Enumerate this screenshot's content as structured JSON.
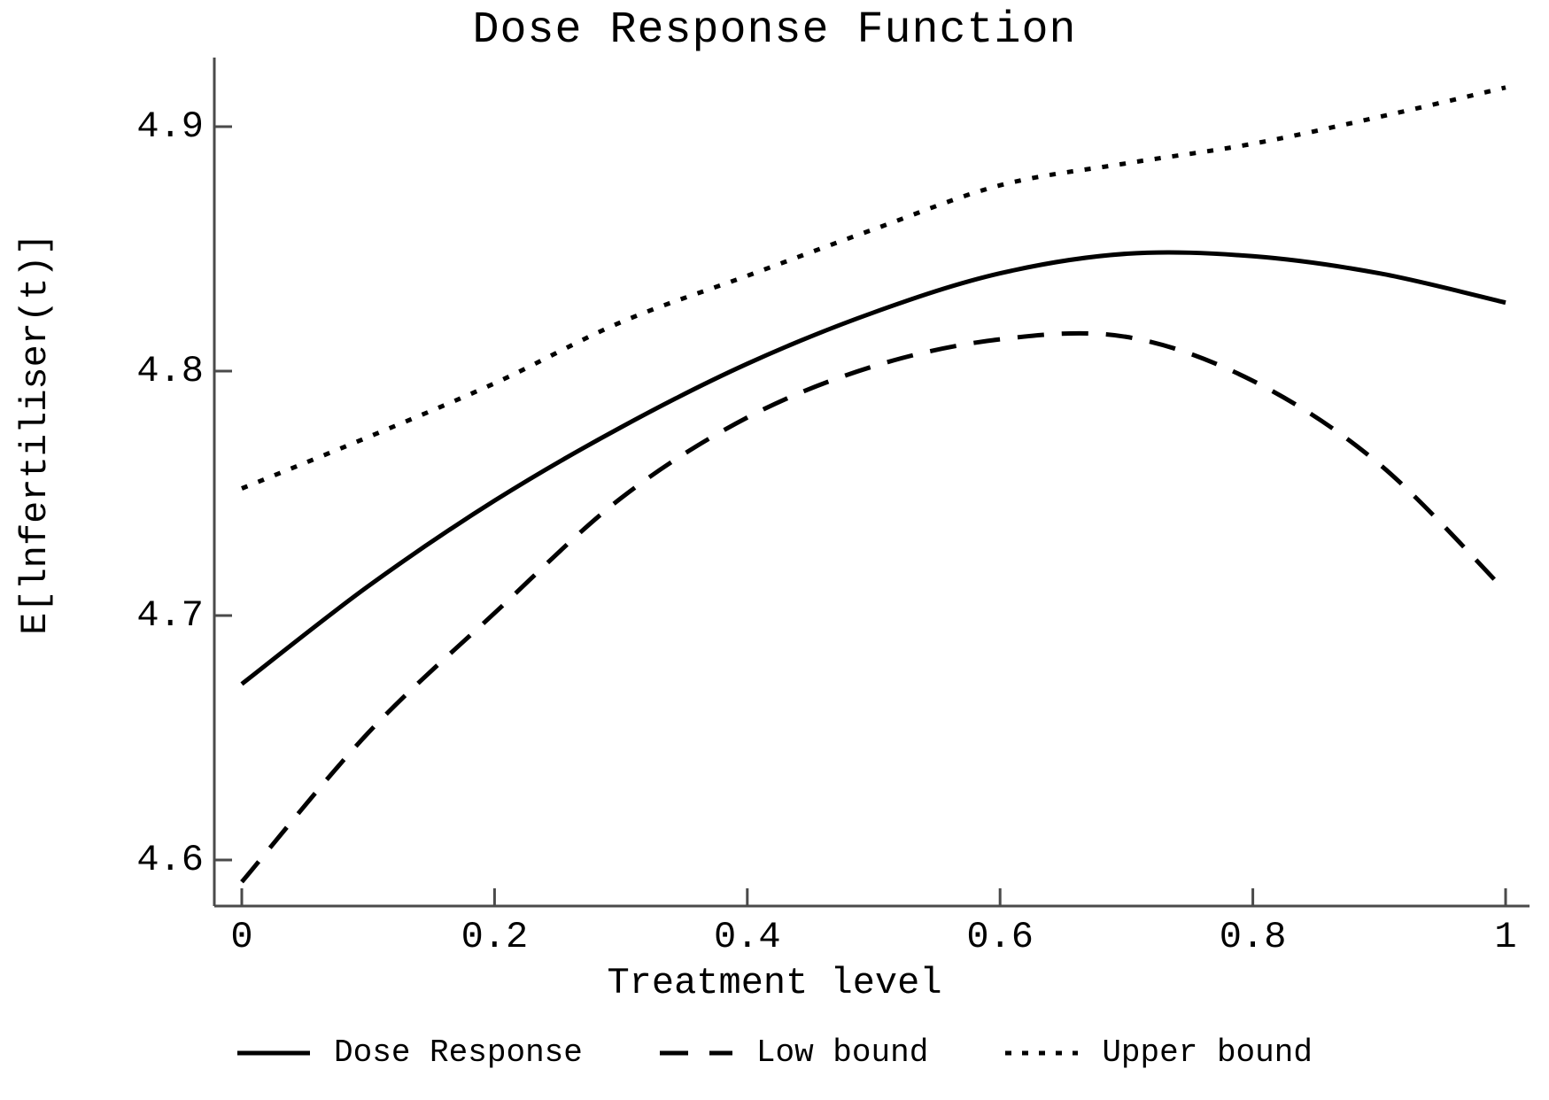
{
  "title": "Dose Response Function",
  "axes": {
    "x": {
      "label": "Treatment level",
      "ticks": [
        "0",
        "0.2",
        "0.4",
        "0.6",
        "0.8",
        "1"
      ],
      "tick_values": [
        0,
        0.2,
        0.4,
        0.6,
        0.8,
        1
      ]
    },
    "y": {
      "label": "E[lnfertiliser(t)]",
      "ticks": [
        "4.6",
        "4.7",
        "4.8",
        "4.9"
      ],
      "tick_values": [
        4.6,
        4.7,
        4.8,
        4.9
      ]
    }
  },
  "legend": [
    {
      "label": "Dose Response",
      "style": "solid"
    },
    {
      "label": "Low bound",
      "style": "dashed"
    },
    {
      "label": "Upper bound",
      "style": "dotted"
    }
  ],
  "colors": {
    "line": "#000000",
    "axis": "#4a4a4a",
    "text": "#000000",
    "background": "#ffffff"
  },
  "chart_data": {
    "type": "line",
    "title": "Dose Response Function",
    "xlabel": "Treatment level",
    "ylabel": "E[lnfertiliser(t)]",
    "xlim": [
      -0.02,
      1.02
    ],
    "ylim": [
      4.58,
      4.93
    ],
    "grid": false,
    "legend_position": "bottom",
    "x": [
      0,
      0.1,
      0.2,
      0.3,
      0.4,
      0.5,
      0.6,
      0.7,
      0.8,
      0.9,
      1.0
    ],
    "series": [
      {
        "name": "Dose Response",
        "style": "solid",
        "values": [
          4.672,
          4.712,
          4.747,
          4.777,
          4.803,
          4.824,
          4.84,
          4.848,
          4.847,
          4.84,
          4.828
        ]
      },
      {
        "name": "Low bound",
        "style": "dashed",
        "values": [
          4.591,
          4.652,
          4.701,
          4.748,
          4.781,
          4.802,
          4.813,
          4.814,
          4.796,
          4.762,
          4.71
        ]
      },
      {
        "name": "Upper bound",
        "style": "dotted",
        "values": [
          4.752,
          4.773,
          4.795,
          4.82,
          4.839,
          4.858,
          4.876,
          4.885,
          4.893,
          4.904,
          4.916
        ]
      }
    ]
  }
}
